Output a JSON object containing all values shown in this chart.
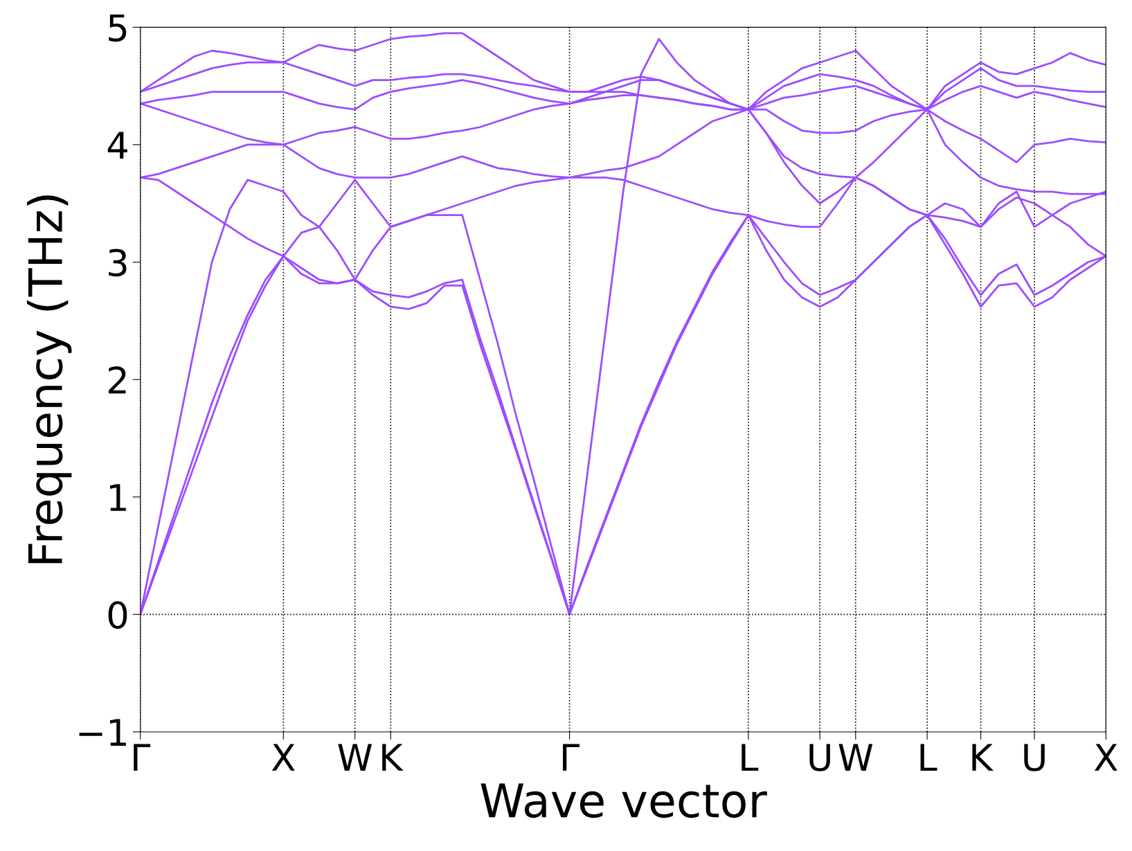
{
  "chart_data": {
    "type": "line",
    "xlabel": "Wave vector",
    "ylabel": "Frequency (THz)",
    "ylim": [
      -1,
      5
    ],
    "yticks": [
      -1,
      0,
      1,
      2,
      3,
      4,
      5
    ],
    "categories": [
      "Γ",
      null,
      null,
      null,
      null,
      null,
      null,
      null,
      "X",
      null,
      null,
      null,
      "W",
      null,
      "K",
      null,
      null,
      null,
      null,
      null,
      null,
      null,
      null,
      null,
      "Γ",
      null,
      null,
      null,
      null,
      null,
      null,
      null,
      null,
      null,
      "L",
      null,
      null,
      null,
      "U",
      null,
      "W",
      null,
      null,
      null,
      "L",
      null,
      null,
      "K",
      null,
      null,
      "U",
      null,
      null,
      null,
      "X"
    ],
    "grid": "x",
    "line_style": "solid",
    "marker": "none",
    "ref_lines": [
      {
        "axis": "y",
        "value": 0,
        "color": "#000000",
        "line_style": "dotted"
      }
    ],
    "series": [
      {
        "color": "#9b4dff",
        "values": [
          0,
          0.42,
          0.84,
          1.26,
          1.68,
          2.1,
          2.5,
          2.8,
          3.05,
          2.9,
          2.82,
          2.82,
          2.85,
          2.72,
          2.62,
          2.6,
          2.65,
          2.8,
          2.8,
          2.3,
          1.85,
          1.4,
          0.93,
          0.47,
          0,
          0.4,
          0.8,
          1.2,
          1.6,
          1.95,
          2.3,
          2.6,
          2.9,
          3.15,
          3.4,
          3.1,
          2.85,
          2.7,
          2.62,
          2.7,
          2.85,
          3.0,
          3.15,
          3.3,
          3.4,
          3.15,
          2.9,
          2.62,
          2.8,
          2.82,
          2.62,
          2.7,
          2.85,
          2.95,
          3.05
        ]
      },
      {
        "color": "#9b4dff",
        "values": [
          0,
          0.45,
          0.9,
          1.35,
          1.8,
          2.2,
          2.55,
          2.85,
          3.05,
          3.25,
          3.3,
          3.1,
          2.85,
          2.75,
          2.72,
          2.7,
          2.75,
          2.82,
          2.85,
          2.35,
          1.9,
          1.42,
          0.95,
          0.48,
          0,
          0.42,
          0.82,
          1.22,
          1.62,
          1.98,
          2.32,
          2.62,
          2.92,
          3.17,
          3.4,
          3.2,
          3.0,
          2.82,
          2.72,
          2.78,
          2.85,
          3.0,
          3.15,
          3.3,
          3.4,
          3.2,
          2.95,
          2.72,
          2.9,
          2.98,
          2.72,
          2.8,
          2.9,
          3.0,
          3.05
        ]
      },
      {
        "color": "#9b4dff",
        "values": [
          0,
          0.75,
          1.5,
          2.25,
          3.0,
          3.45,
          3.7,
          3.65,
          3.6,
          3.4,
          3.3,
          3.5,
          3.7,
          3.5,
          3.3,
          3.35,
          3.4,
          3.4,
          3.4,
          2.85,
          2.3,
          1.7,
          1.15,
          0.57,
          0,
          1.2,
          2.4,
          3.6,
          4.6,
          4.9,
          4.7,
          4.55,
          4.45,
          4.35,
          4.3,
          4.1,
          3.85,
          3.65,
          3.5,
          3.6,
          3.72,
          3.65,
          3.55,
          3.45,
          3.4,
          3.5,
          3.45,
          3.3,
          3.5,
          3.6,
          3.3,
          3.4,
          3.5,
          3.55,
          3.6
        ]
      },
      {
        "color": "#9b4dff",
        "values": [
          3.72,
          3.7,
          3.6,
          3.5,
          3.4,
          3.3,
          3.2,
          3.12,
          3.05,
          2.95,
          2.85,
          2.82,
          2.85,
          3.1,
          3.3,
          3.35,
          3.4,
          3.45,
          3.5,
          3.55,
          3.6,
          3.65,
          3.68,
          3.7,
          3.72,
          3.72,
          3.72,
          3.7,
          3.65,
          3.6,
          3.55,
          3.5,
          3.45,
          3.42,
          3.4,
          3.35,
          3.32,
          3.3,
          3.3,
          3.5,
          3.72,
          3.65,
          3.55,
          3.45,
          3.4,
          3.38,
          3.35,
          3.3,
          3.45,
          3.55,
          3.5,
          3.4,
          3.3,
          3.15,
          3.05
        ]
      },
      {
        "color": "#9b4dff",
        "values": [
          3.72,
          3.75,
          3.8,
          3.85,
          3.9,
          3.95,
          4.0,
          4.0,
          4.0,
          3.9,
          3.8,
          3.75,
          3.72,
          3.72,
          3.72,
          3.75,
          3.8,
          3.85,
          3.9,
          3.85,
          3.8,
          3.78,
          3.75,
          3.73,
          3.72,
          3.75,
          3.78,
          3.8,
          3.85,
          3.9,
          4.0,
          4.1,
          4.2,
          4.25,
          4.3,
          4.1,
          3.9,
          3.8,
          3.75,
          3.73,
          3.72,
          3.85,
          4.0,
          4.15,
          4.3,
          4.0,
          3.85,
          3.72,
          3.65,
          3.62,
          3.6,
          3.6,
          3.58,
          3.58,
          3.58
        ]
      },
      {
        "color": "#9b4dff",
        "values": [
          4.35,
          4.3,
          4.25,
          4.2,
          4.15,
          4.1,
          4.05,
          4.02,
          4.0,
          4.05,
          4.1,
          4.12,
          4.15,
          4.1,
          4.05,
          4.05,
          4.07,
          4.1,
          4.12,
          4.15,
          4.2,
          4.25,
          4.3,
          4.33,
          4.35,
          4.38,
          4.4,
          4.42,
          4.42,
          4.4,
          4.38,
          4.35,
          4.33,
          4.3,
          4.3,
          4.3,
          4.2,
          4.12,
          4.1,
          4.1,
          4.12,
          4.2,
          4.25,
          4.28,
          4.3,
          4.2,
          4.12,
          4.05,
          3.95,
          3.85,
          4.0,
          4.02,
          4.05,
          4.03,
          4.02
        ]
      },
      {
        "color": "#9b4dff",
        "values": [
          4.35,
          4.38,
          4.4,
          4.42,
          4.45,
          4.45,
          4.45,
          4.45,
          4.45,
          4.4,
          4.35,
          4.32,
          4.3,
          4.4,
          4.45,
          4.48,
          4.5,
          4.52,
          4.55,
          4.52,
          4.48,
          4.44,
          4.4,
          4.37,
          4.35,
          4.4,
          4.45,
          4.5,
          4.55,
          4.55,
          4.5,
          4.45,
          4.4,
          4.35,
          4.3,
          4.35,
          4.4,
          4.42,
          4.45,
          4.48,
          4.5,
          4.45,
          4.4,
          4.35,
          4.3,
          4.38,
          4.45,
          4.5,
          4.45,
          4.4,
          4.45,
          4.42,
          4.38,
          4.35,
          4.32
        ]
      },
      {
        "color": "#9b4dff",
        "values": [
          4.45,
          4.5,
          4.55,
          4.6,
          4.65,
          4.68,
          4.7,
          4.7,
          4.7,
          4.65,
          4.6,
          4.55,
          4.5,
          4.55,
          4.55,
          4.57,
          4.58,
          4.6,
          4.6,
          4.58,
          4.55,
          4.52,
          4.5,
          4.47,
          4.45,
          4.45,
          4.45,
          4.45,
          4.42,
          4.4,
          4.38,
          4.35,
          4.33,
          4.3,
          4.3,
          4.4,
          4.5,
          4.55,
          4.6,
          4.58,
          4.55,
          4.5,
          4.42,
          4.35,
          4.3,
          4.45,
          4.55,
          4.65,
          4.55,
          4.5,
          4.5,
          4.48,
          4.46,
          4.45,
          4.45
        ]
      },
      {
        "color": "#9b4dff",
        "values": [
          4.45,
          4.55,
          4.65,
          4.75,
          4.8,
          4.78,
          4.75,
          4.72,
          4.7,
          4.78,
          4.85,
          4.82,
          4.8,
          4.85,
          4.9,
          4.92,
          4.93,
          4.95,
          4.95,
          4.85,
          4.75,
          4.65,
          4.55,
          4.5,
          4.45,
          4.45,
          4.5,
          4.55,
          4.58,
          4.55,
          4.5,
          4.45,
          4.4,
          4.35,
          4.3,
          4.45,
          4.55,
          4.65,
          4.7,
          4.75,
          4.8,
          4.65,
          4.5,
          4.4,
          4.3,
          4.5,
          4.6,
          4.7,
          4.62,
          4.6,
          4.65,
          4.7,
          4.78,
          4.72,
          4.68
        ]
      }
    ]
  }
}
